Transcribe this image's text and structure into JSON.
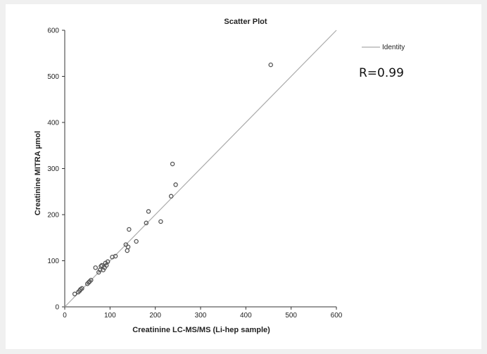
{
  "chart_data": {
    "type": "scatter",
    "title": "Scatter Plot",
    "xlabel": "Creatinine LC-MS/MS (Li-hep sample)",
    "ylabel": "Creatinine MITRA µmol",
    "xlim": [
      0,
      600
    ],
    "ylim": [
      0,
      600
    ],
    "xticks": [
      0,
      100,
      200,
      300,
      400,
      500,
      600
    ],
    "yticks": [
      0,
      100,
      200,
      300,
      400,
      500,
      600
    ],
    "grid": false,
    "legend": {
      "position": "top-right",
      "entries": [
        "Identity"
      ]
    },
    "annotation": "R=0.99",
    "colors": {
      "points": "#555555",
      "identity": "#aaaaaa",
      "axes": "#333333"
    },
    "identity_line": {
      "x": [
        0,
        600
      ],
      "y": [
        0,
        600
      ]
    },
    "points": {
      "x": [
        22,
        30,
        33,
        35,
        38,
        50,
        53,
        55,
        58,
        68,
        75,
        78,
        80,
        82,
        85,
        88,
        90,
        92,
        95,
        105,
        112,
        135,
        138,
        140,
        142,
        158,
        180,
        185,
        212,
        235,
        238,
        245,
        455
      ],
      "y": [
        28,
        32,
        35,
        38,
        40,
        50,
        53,
        55,
        58,
        85,
        75,
        80,
        88,
        90,
        80,
        85,
        95,
        90,
        98,
        108,
        110,
        135,
        122,
        130,
        168,
        142,
        182,
        207,
        185,
        240,
        310,
        265,
        525
      ]
    }
  }
}
